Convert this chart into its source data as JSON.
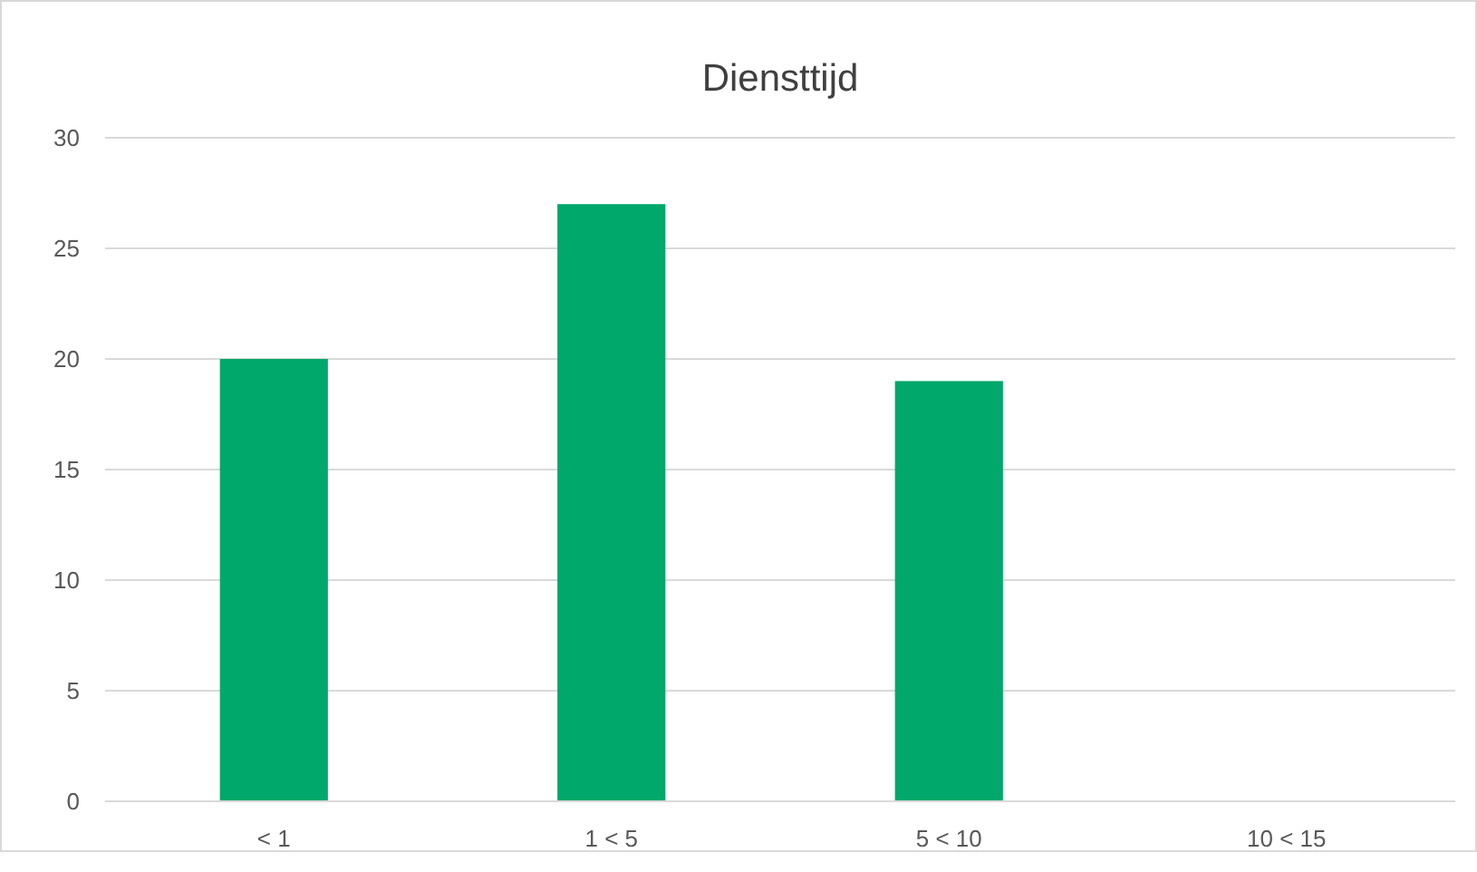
{
  "chart_data": {
    "type": "bar",
    "title": "Diensttijd",
    "categories": [
      "< 1",
      "1 < 5",
      "5 < 10",
      "10 < 15"
    ],
    "values": [
      20,
      27,
      19,
      0
    ],
    "color": "#00a86b",
    "ylim": [
      0,
      30
    ],
    "yticks": [
      0,
      5,
      10,
      15,
      20,
      25,
      30
    ],
    "grid": "y"
  }
}
